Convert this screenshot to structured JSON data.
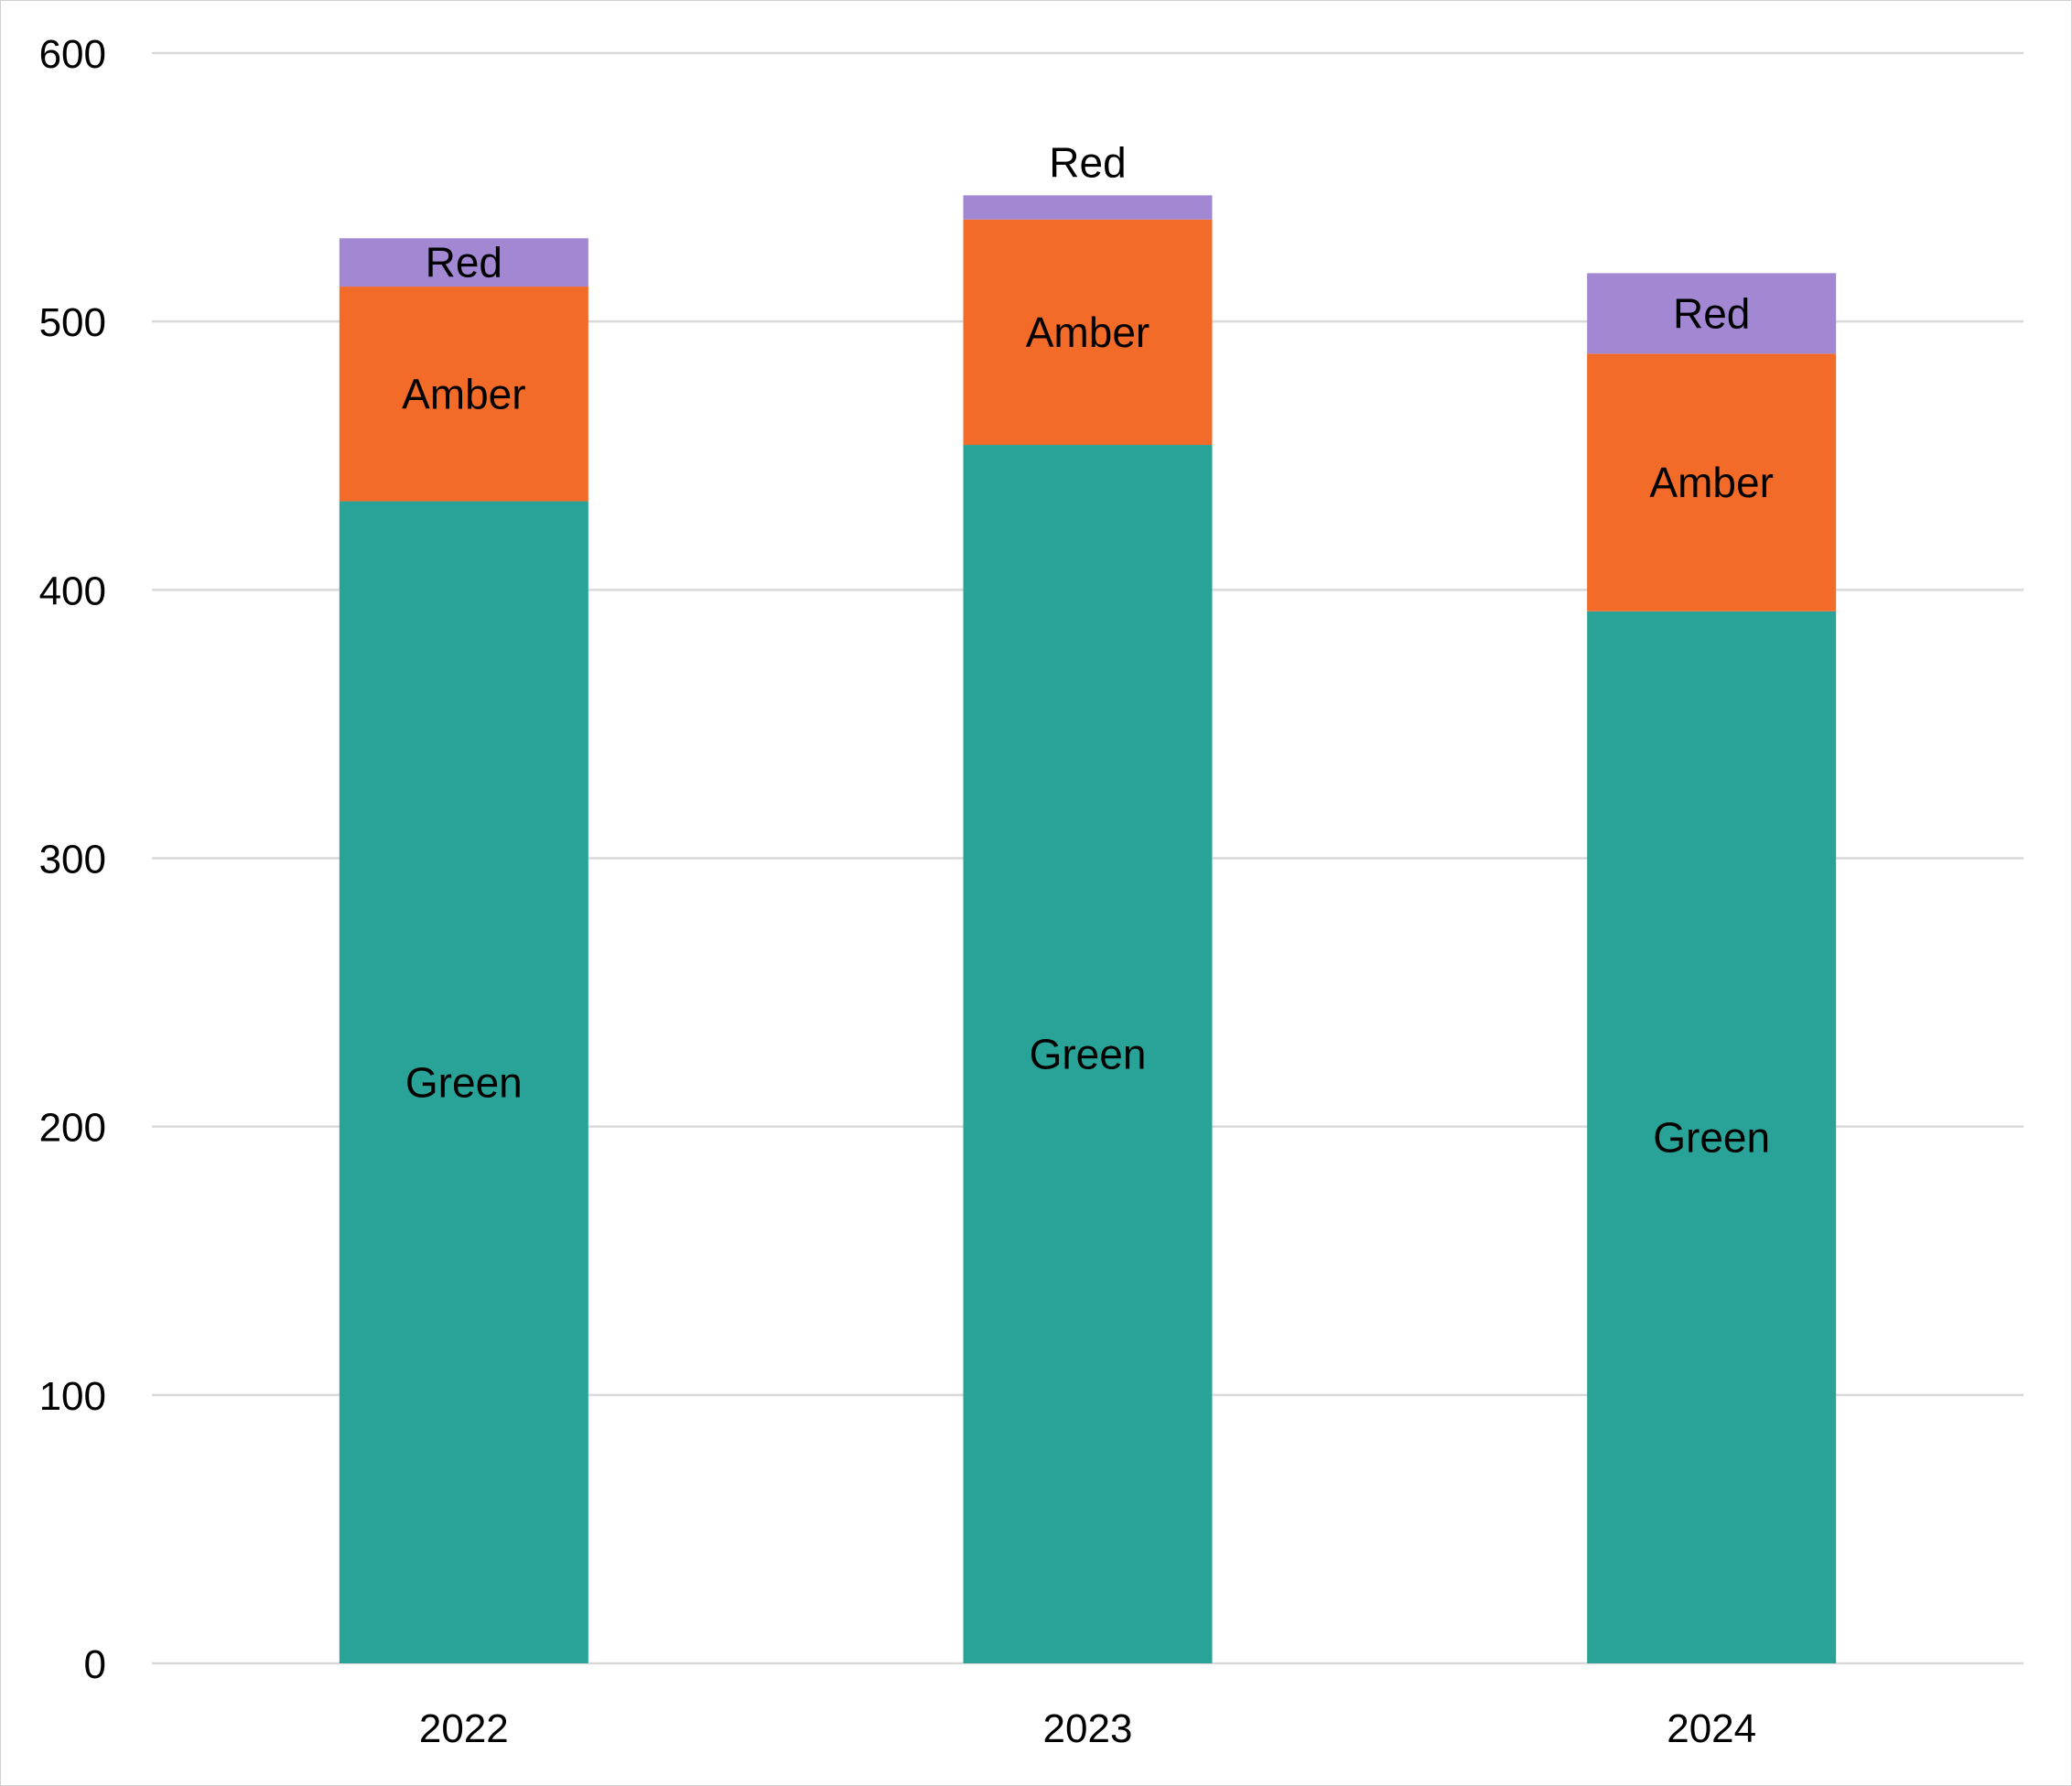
{
  "chart_data": {
    "type": "bar",
    "stacked": true,
    "categories": [
      "2022",
      "2023",
      "2024"
    ],
    "series": [
      {
        "name": "Green",
        "color": "#29a397",
        "values": [
          433,
          454,
          392
        ]
      },
      {
        "name": "Amber",
        "color": "#f36b28",
        "values": [
          80,
          84,
          96
        ]
      },
      {
        "name": "Red",
        "color": "#a288d3",
        "values": [
          18,
          9,
          30
        ]
      }
    ],
    "segment_labels_outside": [
      false,
      true,
      false
    ],
    "title": "",
    "xlabel": "",
    "ylabel": "",
    "ylim": [
      0,
      600
    ],
    "yticks": [
      0,
      100,
      200,
      300,
      400,
      500,
      600
    ],
    "grid": true,
    "legend": "none"
  }
}
